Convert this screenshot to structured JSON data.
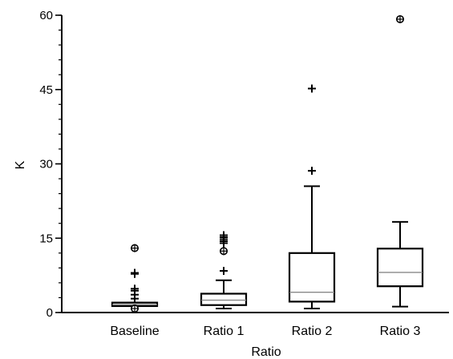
{
  "chart_data": {
    "type": "boxplot",
    "title": "",
    "xlabel": "Ratio",
    "ylabel": "K",
    "ylim": [
      0,
      60
    ],
    "yticks": [
      0,
      15,
      30,
      45,
      60
    ],
    "yminor_step": 3,
    "grid": false,
    "categories": [
      "Baseline",
      "Ratio 1",
      "Ratio 2",
      "Ratio 3"
    ],
    "boxes": [
      {
        "category": "Baseline",
        "whisker_low": 1.3,
        "q1": 1.3,
        "median": 1.6,
        "q3": 2.0,
        "whisker_high": 2.0,
        "outliers": [
          {
            "y": 0.8,
            "marker": "circle"
          },
          {
            "y": 2.8,
            "marker": "plus"
          },
          {
            "y": 3.6,
            "marker": "plus"
          },
          {
            "y": 4.4,
            "marker": "plus"
          },
          {
            "y": 4.8,
            "marker": "plus"
          },
          {
            "y": 7.8,
            "marker": "plus"
          },
          {
            "y": 8.0,
            "marker": "plus"
          },
          {
            "y": 13.0,
            "marker": "circle"
          }
        ]
      },
      {
        "category": "Ratio 1",
        "whisker_low": 0.8,
        "q1": 1.5,
        "median": 2.5,
        "q3": 3.8,
        "whisker_high": 6.5,
        "outliers": [
          {
            "y": 8.4,
            "marker": "plus"
          },
          {
            "y": 12.4,
            "marker": "circle"
          },
          {
            "y": 14.0,
            "marker": "plus"
          },
          {
            "y": 14.4,
            "marker": "plus"
          },
          {
            "y": 14.8,
            "marker": "plus"
          },
          {
            "y": 15.2,
            "marker": "plus"
          },
          {
            "y": 15.6,
            "marker": "plus"
          }
        ]
      },
      {
        "category": "Ratio 2",
        "whisker_low": 0.8,
        "q1": 2.2,
        "median": 4.1,
        "q3": 12.0,
        "whisker_high": 25.5,
        "outliers": [
          {
            "y": 28.6,
            "marker": "plus"
          },
          {
            "y": 45.2,
            "marker": "plus"
          }
        ]
      },
      {
        "category": "Ratio 3",
        "whisker_low": 1.2,
        "q1": 5.3,
        "median": 8.1,
        "q3": 12.9,
        "whisker_high": 18.3,
        "outliers": [
          {
            "y": 59.2,
            "marker": "circle"
          }
        ]
      }
    ]
  }
}
